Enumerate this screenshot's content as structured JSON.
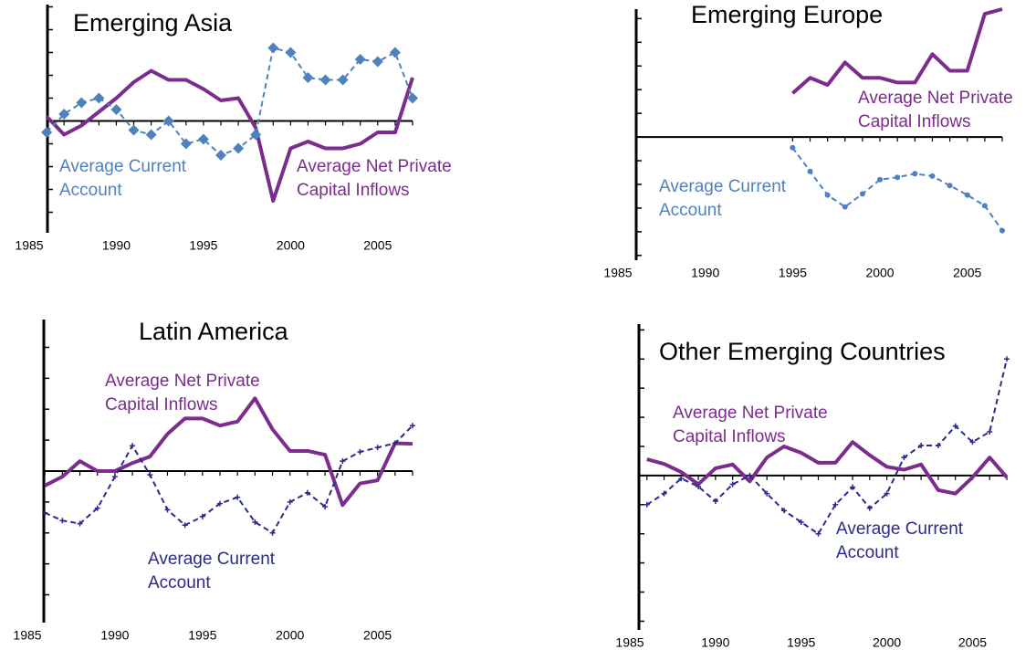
{
  "chart_data": [
    {
      "type": "line",
      "title": "Emerging Asia",
      "x": [
        1986,
        1987,
        1988,
        1989,
        1990,
        1991,
        1992,
        1993,
        1994,
        1995,
        1996,
        1997,
        1998,
        1999,
        2000,
        2001,
        2002,
        2003,
        2004,
        2005,
        2006,
        2007
      ],
      "xlim": [
        1985,
        2007
      ],
      "xticks": [
        1985,
        1990,
        1995,
        2000,
        2005
      ],
      "ylim": [
        -4.9,
        5.1
      ],
      "yticks": [
        -4,
        -3,
        -2,
        -1,
        0,
        1,
        2,
        3,
        4,
        5
      ],
      "series": [
        {
          "name": "Average Net Private Capital Inflows",
          "label": [
            "Average Net Private",
            "Capital Inflows"
          ],
          "color": "#7b2c8c",
          "dashed": false,
          "marker": "none",
          "values": [
            0.2,
            -0.6,
            -0.2,
            0.4,
            1.0,
            1.7,
            2.2,
            1.8,
            1.8,
            1.4,
            0.9,
            1.0,
            -0.3,
            -3.5,
            -1.2,
            -0.9,
            -1.2,
            -1.2,
            -1.0,
            -0.5,
            -0.5,
            1.9
          ]
        },
        {
          "name": "Average Current Account",
          "label": [
            "Average Current",
            "Account"
          ],
          "color": "#4f81bd",
          "dashed": true,
          "marker": "diamond",
          "values": [
            -0.5,
            0.3,
            0.8,
            1.0,
            0.5,
            -0.4,
            -0.6,
            0,
            -1.0,
            -0.8,
            -1.5,
            -1.2,
            -0.6,
            3.2,
            3.0,
            1.9,
            1.8,
            1.8,
            2.7,
            2.6,
            3.0,
            1.0
          ]
        }
      ]
    },
    {
      "type": "line",
      "title": "Emerging Europe",
      "x": [
        1995,
        1996,
        1997,
        1998,
        1999,
        2000,
        2001,
        2002,
        2003,
        2004,
        2005,
        2006,
        2007
      ],
      "xlim": [
        1985,
        2007
      ],
      "xticks": [
        1985,
        1990,
        1995,
        2000,
        2005
      ],
      "ylim": [
        -5.2,
        5.4
      ],
      "yticks": [
        -5,
        -4,
        -3,
        -2,
        -1,
        0,
        1,
        2,
        3,
        4,
        5
      ],
      "series": [
        {
          "name": "Average Net Private Capital Inflows",
          "label": [
            "Average Net Private",
            "Capital Inflows"
          ],
          "color": "#7b2c8c",
          "dashed": false,
          "marker": "none",
          "values": [
            1.85,
            2.5,
            2.2,
            3.15,
            2.5,
            2.5,
            2.3,
            2.3,
            3.5,
            2.8,
            2.8,
            5.2,
            5.4
          ]
        },
        {
          "name": "Average Current Account",
          "label": [
            "Average Current",
            "Account"
          ],
          "color": "#4f81bd",
          "dashed": true,
          "marker": "dot",
          "values": [
            -0.45,
            -1.45,
            -2.45,
            -2.95,
            -2.4,
            -1.8,
            -1.7,
            -1.55,
            -1.65,
            -2.05,
            -2.45,
            -2.9,
            -3.95
          ]
        }
      ]
    },
    {
      "type": "line",
      "title": "Latin America",
      "x": [
        1986,
        1987,
        1988,
        1989,
        1990,
        1991,
        1992,
        1993,
        1994,
        1995,
        1996,
        1997,
        1998,
        1999,
        2000,
        2001,
        2002,
        2003,
        2004,
        2005,
        2006,
        2007
      ],
      "xlim": [
        1985,
        2007
      ],
      "xticks": [
        1985,
        1990,
        1995,
        2000,
        2005
      ],
      "ylim": [
        -4.9,
        4.9
      ],
      "yticks": [
        -4,
        -3,
        -2,
        -1,
        0,
        1,
        2,
        3,
        4
      ],
      "series": [
        {
          "name": "Average Net Private Capital Inflows",
          "label": [
            "Average Net Private",
            "Capital Inflows"
          ],
          "color": "#7b2c8c",
          "dashed": false,
          "marker": "none",
          "values": [
            -0.47,
            -0.18,
            0.32,
            0,
            0,
            0.26,
            0.47,
            1.2,
            1.7,
            1.7,
            1.47,
            1.6,
            2.35,
            1.35,
            0.65,
            0.65,
            0.53,
            -1.1,
            -0.4,
            -0.3,
            0.9,
            0.88
          ]
        },
        {
          "name": "Average Current Account",
          "label": [
            "Average Current",
            "Account"
          ],
          "color": "#2b2b8c",
          "dashed": true,
          "marker": "plus",
          "values": [
            -1.35,
            -1.6,
            -1.7,
            -1.2,
            -0.18,
            0.82,
            -0.12,
            -1.25,
            -1.75,
            -1.47,
            -1.05,
            -0.85,
            -1.65,
            -2.0,
            -1.0,
            -0.7,
            -1.15,
            0.32,
            0.62,
            0.76,
            0.9,
            1.47
          ]
        }
      ]
    },
    {
      "type": "line",
      "title": "Other Emerging Countries",
      "x": [
        1986,
        1987,
        1988,
        1989,
        1990,
        1991,
        1992,
        1993,
        1994,
        1995,
        1996,
        1997,
        1998,
        1999,
        2000,
        2001,
        2002,
        2003,
        2004,
        2005,
        2006,
        2007
      ],
      "xlim": [
        1985,
        2007
      ],
      "xticks": [
        1985,
        1990,
        1995,
        2000,
        2005
      ],
      "ylim": [
        -5.3,
        5.2
      ],
      "yticks": [
        -5,
        -4,
        -3,
        -2,
        -1,
        0,
        1,
        2,
        3,
        4,
        5
      ],
      "series": [
        {
          "name": "Average Net Private Capital Inflows",
          "label": [
            "Average Net Private",
            "Capital Inflows"
          ],
          "color": "#7b2c8c",
          "dashed": false,
          "marker": "none",
          "values": [
            0.56,
            0.4,
            0.12,
            -0.3,
            0.25,
            0.38,
            -0.2,
            0.62,
            1.0,
            0.78,
            0.44,
            0.44,
            1.15,
            0.7,
            0.3,
            0.2,
            0.38,
            -0.5,
            -0.62,
            -0.06,
            0.62,
            -0.06
          ]
        },
        {
          "name": "Average Current Account",
          "label": [
            "Average Current",
            "Account"
          ],
          "color": "#2b2b8c",
          "dashed": true,
          "marker": "plus",
          "values": [
            -1.0,
            -0.62,
            -0.1,
            -0.38,
            -0.88,
            -0.3,
            0,
            -0.62,
            -1.2,
            -1.6,
            -2.0,
            -1.0,
            -0.4,
            -1.12,
            -0.62,
            0.62,
            1.03,
            1.03,
            1.7,
            1.15,
            1.5,
            4.0
          ]
        }
      ]
    }
  ]
}
